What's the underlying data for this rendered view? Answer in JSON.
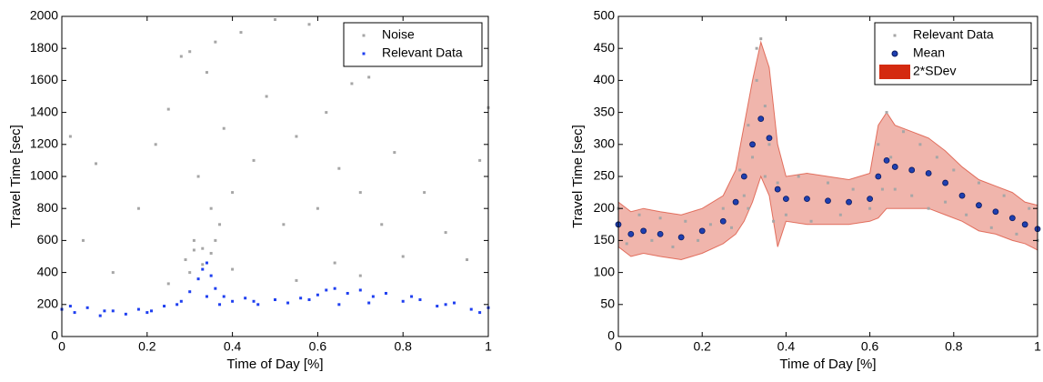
{
  "chart_data": [
    {
      "type": "scatter",
      "xlabel": "Time of Day [%]",
      "ylabel": "Travel Time [sec]",
      "xlim": [
        0,
        1
      ],
      "ylim": [
        0,
        2000
      ],
      "xticks": [
        0,
        0.2,
        0.4,
        0.6,
        0.8,
        1
      ],
      "yticks": [
        0,
        200,
        400,
        600,
        800,
        1000,
        1200,
        1400,
        1600,
        1800,
        2000
      ],
      "legend": "upper right",
      "series": [
        {
          "name": "Noise",
          "color": "#a6a6a6",
          "marker": "point",
          "x": [
            0.02,
            0.05,
            0.08,
            0.12,
            0.18,
            0.22,
            0.25,
            0.28,
            0.3,
            0.31,
            0.32,
            0.33,
            0.34,
            0.35,
            0.36,
            0.37,
            0.38,
            0.4,
            0.42,
            0.45,
            0.48,
            0.5,
            0.52,
            0.55,
            0.58,
            0.6,
            0.62,
            0.65,
            0.68,
            0.7,
            0.72,
            0.75,
            0.78,
            0.8,
            0.85,
            0.9,
            0.95,
            0.98,
            1,
            0.33,
            0.35,
            0.3,
            0.55,
            0.7,
            0.25,
            0.29,
            0.31,
            0.36,
            0.4,
            0.64
          ],
          "values": [
            1250,
            600,
            1080,
            400,
            800,
            1200,
            1420,
            1750,
            1780,
            600,
            1000,
            550,
            1650,
            800,
            1840,
            700,
            1300,
            900,
            1900,
            1100,
            1500,
            1980,
            700,
            1250,
            1950,
            800,
            1400,
            1050,
            1580,
            900,
            1620,
            700,
            1150,
            500,
            900,
            650,
            480,
            1100,
            1430,
            450,
            520,
            400,
            350,
            380,
            330,
            480,
            540,
            600,
            420,
            460
          ]
        },
        {
          "name": "Relevant Data",
          "color": "#1f3ff0",
          "marker": "point",
          "x": [
            0,
            0.03,
            0.06,
            0.09,
            0.12,
            0.15,
            0.18,
            0.21,
            0.24,
            0.27,
            0.3,
            0.32,
            0.33,
            0.34,
            0.35,
            0.36,
            0.38,
            0.4,
            0.43,
            0.46,
            0.5,
            0.53,
            0.56,
            0.6,
            0.62,
            0.64,
            0.67,
            0.7,
            0.73,
            0.76,
            0.8,
            0.84,
            0.88,
            0.92,
            0.96,
            1,
            0.34,
            0.37,
            0.65,
            0.72,
            0.02,
            0.1,
            0.2,
            0.28,
            0.45,
            0.58,
            0.82,
            0.9,
            0.98
          ],
          "values": [
            170,
            150,
            180,
            130,
            160,
            140,
            170,
            160,
            190,
            200,
            280,
            360,
            420,
            460,
            380,
            300,
            250,
            220,
            240,
            200,
            230,
            210,
            240,
            260,
            290,
            300,
            270,
            290,
            250,
            270,
            220,
            230,
            190,
            210,
            170,
            180,
            250,
            200,
            200,
            210,
            190,
            160,
            150,
            220,
            220,
            230,
            250,
            200,
            150
          ]
        }
      ]
    },
    {
      "type": "scatter",
      "xlabel": "Time of Day [%]",
      "ylabel": "Travel Time [sec]",
      "xlim": [
        0,
        1
      ],
      "ylim": [
        0,
        500
      ],
      "xticks": [
        0,
        0.2,
        0.4,
        0.6,
        0.8,
        1
      ],
      "yticks": [
        0,
        50,
        100,
        150,
        200,
        250,
        300,
        350,
        400,
        450,
        500
      ],
      "legend": "upper right",
      "series": [
        {
          "name": "Relevant Data",
          "color": "#a6a6a6",
          "marker": "point",
          "x": [
            0,
            0.02,
            0.05,
            0.08,
            0.1,
            0.13,
            0.16,
            0.19,
            0.22,
            0.25,
            0.27,
            0.29,
            0.3,
            0.31,
            0.32,
            0.33,
            0.34,
            0.35,
            0.35,
            0.36,
            0.37,
            0.38,
            0.4,
            0.43,
            0.46,
            0.5,
            0.53,
            0.56,
            0.6,
            0.62,
            0.63,
            0.64,
            0.66,
            0.68,
            0.7,
            0.72,
            0.74,
            0.76,
            0.78,
            0.8,
            0.83,
            0.86,
            0.89,
            0.92,
            0.95,
            0.98,
            1,
            0.33,
            0.31,
            0.65
          ],
          "values": [
            200,
            145,
            190,
            150,
            185,
            140,
            180,
            150,
            175,
            200,
            170,
            260,
            220,
            330,
            280,
            400,
            465,
            360,
            250,
            300,
            180,
            240,
            190,
            250,
            180,
            240,
            190,
            230,
            200,
            300,
            230,
            350,
            230,
            320,
            220,
            300,
            200,
            280,
            210,
            260,
            190,
            240,
            170,
            220,
            160,
            200,
            150,
            450,
            200,
            280
          ]
        },
        {
          "name": "Mean",
          "color": "#1f3fb0",
          "marker": "circle",
          "x": [
            0,
            0.03,
            0.06,
            0.1,
            0.15,
            0.2,
            0.25,
            0.28,
            0.3,
            0.32,
            0.34,
            0.36,
            0.38,
            0.4,
            0.45,
            0.5,
            0.55,
            0.6,
            0.62,
            0.64,
            0.66,
            0.7,
            0.74,
            0.78,
            0.82,
            0.86,
            0.9,
            0.94,
            0.97,
            1
          ],
          "values": [
            175,
            160,
            165,
            160,
            155,
            165,
            180,
            210,
            250,
            300,
            340,
            310,
            230,
            215,
            215,
            212,
            210,
            215,
            250,
            275,
            265,
            260,
            255,
            240,
            220,
            205,
            195,
            185,
            175,
            168
          ]
        },
        {
          "name": "2*SDev",
          "color": "#d42a10",
          "marker": "band",
          "x": [
            0,
            0.03,
            0.06,
            0.1,
            0.15,
            0.2,
            0.25,
            0.28,
            0.3,
            0.32,
            0.34,
            0.36,
            0.38,
            0.4,
            0.45,
            0.5,
            0.55,
            0.6,
            0.62,
            0.64,
            0.66,
            0.7,
            0.74,
            0.78,
            0.82,
            0.86,
            0.9,
            0.94,
            0.97,
            1
          ],
          "values": [
            210,
            195,
            200,
            195,
            190,
            200,
            220,
            260,
            330,
            400,
            460,
            420,
            300,
            250,
            255,
            250,
            245,
            255,
            330,
            350,
            330,
            320,
            310,
            290,
            265,
            245,
            235,
            225,
            210,
            205
          ],
          "lower": [
            140,
            125,
            130,
            125,
            120,
            130,
            145,
            160,
            180,
            210,
            250,
            220,
            140,
            180,
            175,
            175,
            175,
            180,
            185,
            200,
            200,
            200,
            200,
            190,
            180,
            165,
            160,
            150,
            145,
            135
          ]
        }
      ]
    }
  ]
}
